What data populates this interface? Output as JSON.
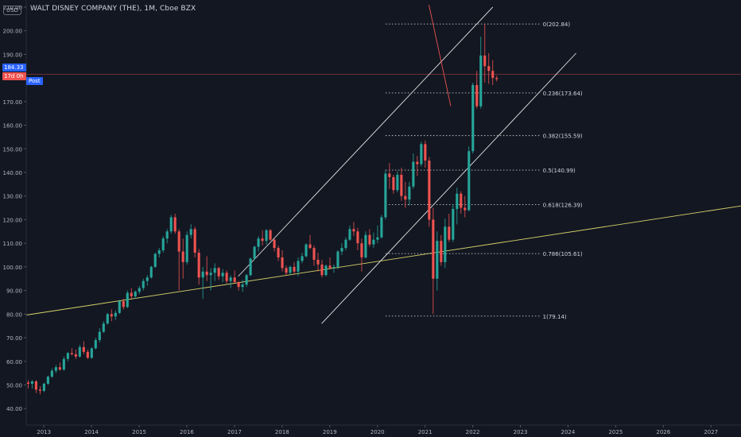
{
  "header": {
    "title": "WALT DISNEY COMPANY (THE), 1M, Cboe BZX",
    "currency": "USD",
    "price_label": "184.33",
    "session_label": "Post",
    "countdown_label": "17d 0h"
  },
  "colors": {
    "background": "#131722",
    "up": "#26a69a",
    "down": "#ef5350",
    "trendline": "#d8d36a",
    "channel": "#e6e6e6",
    "fib": "#c8c8c8",
    "price_line": "#ef5350",
    "post_badge": "#2962ff"
  },
  "chart_data": {
    "type": "candlestick",
    "title": "WALT DISNEY COMPANY (THE), 1M, Cboe BZX",
    "y_ticks": [
      40,
      50,
      60,
      70,
      80,
      90,
      100,
      110,
      120,
      130,
      140,
      150,
      160,
      170,
      180,
      190,
      200,
      210
    ],
    "y_tick_labels": [
      "40.00",
      "50.00",
      "60.00",
      "70.00",
      "80.00",
      "90.00",
      "100.00",
      "110.00",
      "120.00",
      "130.00",
      "140.00",
      "150.00",
      "160.00",
      "170.00",
      "180.00",
      "190.00",
      "200.00",
      "210.00"
    ],
    "x_ticks": [
      2013,
      2014,
      2015,
      2016,
      2017,
      2018,
      2019,
      2020,
      2021,
      2022,
      2023,
      2024,
      2025,
      2026,
      2027
    ],
    "x_tick_labels": [
      "2013",
      "2014",
      "2015",
      "2016",
      "2017",
      "2018",
      "2019",
      "2020",
      "2021",
      "2022",
      "2023",
      "2024",
      "2025",
      "2026",
      "2027"
    ],
    "ylim": [
      33,
      213
    ],
    "xlim": [
      2012.63,
      2027.63
    ],
    "current_price": 184.33,
    "price_line": 181.5,
    "candles": [
      [
        51.0,
        52.0,
        48.5,
        50.5
      ],
      [
        50.5,
        52.0,
        48.5,
        51.5
      ],
      [
        51.5,
        52.0,
        46.5,
        48.0
      ],
      [
        48.0,
        49.5,
        46.0,
        47.5
      ],
      [
        47.5,
        51.0,
        47.0,
        50.5
      ],
      [
        50.5,
        54.0,
        50.0,
        53.5
      ],
      [
        53.5,
        57.0,
        53.0,
        56.0
      ],
      [
        56.0,
        58.5,
        55.0,
        57.5
      ],
      [
        57.5,
        59.5,
        56.0,
        56.5
      ],
      [
        56.5,
        62.0,
        56.0,
        61.0
      ],
      [
        61.0,
        64.0,
        60.0,
        63.5
      ],
      [
        63.5,
        65.5,
        62.5,
        63.0
      ],
      [
        63.0,
        65.0,
        61.0,
        62.0
      ],
      [
        62.0,
        67.0,
        61.5,
        66.0
      ],
      [
        66.0,
        68.5,
        63.0,
        64.0
      ],
      [
        64.0,
        65.0,
        61.0,
        61.5
      ],
      [
        61.5,
        66.0,
        61.0,
        65.5
      ],
      [
        65.5,
        70.0,
        65.0,
        69.0
      ],
      [
        69.0,
        74.0,
        68.0,
        72.5
      ],
      [
        72.5,
        77.0,
        72.0,
        76.0
      ],
      [
        76.0,
        80.5,
        75.5,
        80.0
      ],
      [
        80.0,
        82.0,
        77.0,
        79.0
      ],
      [
        79.0,
        81.5,
        77.5,
        80.5
      ],
      [
        80.5,
        86.0,
        80.0,
        85.5
      ],
      [
        85.5,
        86.5,
        82.0,
        83.0
      ],
      [
        83.0,
        90.0,
        82.5,
        89.0
      ],
      [
        89.0,
        91.0,
        86.5,
        87.5
      ],
      [
        87.5,
        90.0,
        86.5,
        89.5
      ],
      [
        89.5,
        92.0,
        88.5,
        91.0
      ],
      [
        91.0,
        95.0,
        90.0,
        94.0
      ],
      [
        94.0,
        96.5,
        92.0,
        95.5
      ],
      [
        95.5,
        100.5,
        95.0,
        100.0
      ],
      [
        100.0,
        106.0,
        99.5,
        105.5
      ],
      [
        105.5,
        108.0,
        104.0,
        107.0
      ],
      [
        107.0,
        113.0,
        106.0,
        112.0
      ],
      [
        112.0,
        116.0,
        110.0,
        115.0
      ],
      [
        115.0,
        122.0,
        114.0,
        121.0
      ],
      [
        121.0,
        122.5,
        114.0,
        115.0
      ],
      [
        115.0,
        116.0,
        90.0,
        106.5
      ],
      [
        106.5,
        112.0,
        95.0,
        102.0
      ],
      [
        102.0,
        115.0,
        101.0,
        113.5
      ],
      [
        113.5,
        118.0,
        112.0,
        116.0
      ],
      [
        116.0,
        117.0,
        104.0,
        106.0
      ],
      [
        106.0,
        107.5,
        92.5,
        95.5
      ],
      [
        95.5,
        100.0,
        86.5,
        98.0
      ],
      [
        98.0,
        104.5,
        94.0,
        96.5
      ],
      [
        96.5,
        99.5,
        90.0,
        97.5
      ],
      [
        97.5,
        101.5,
        94.0,
        99.5
      ],
      [
        99.5,
        100.0,
        94.5,
        96.0
      ],
      [
        96.0,
        99.0,
        93.5,
        97.5
      ],
      [
        97.5,
        98.5,
        93.0,
        94.0
      ],
      [
        94.0,
        96.5,
        91.0,
        95.5
      ],
      [
        95.5,
        98.5,
        93.5,
        93.5
      ],
      [
        93.5,
        94.0,
        90.0,
        91.5
      ],
      [
        91.5,
        94.5,
        89.5,
        92.5
      ],
      [
        92.5,
        97.0,
        91.5,
        96.5
      ],
      [
        96.5,
        104.0,
        96.0,
        103.5
      ],
      [
        103.5,
        109.0,
        103.0,
        108.5
      ],
      [
        108.5,
        113.0,
        106.5,
        112.0
      ],
      [
        112.0,
        115.5,
        109.0,
        111.0
      ],
      [
        111.0,
        116.0,
        109.5,
        115.5
      ],
      [
        115.5,
        116.0,
        111.0,
        111.5
      ],
      [
        111.5,
        112.0,
        106.5,
        108.0
      ],
      [
        108.0,
        109.0,
        102.5,
        104.0
      ],
      [
        104.0,
        107.0,
        98.0,
        99.5
      ],
      [
        99.5,
        100.5,
        96.5,
        97.5
      ],
      [
        97.5,
        100.5,
        96.5,
        100.0
      ],
      [
        100.0,
        102.0,
        97.0,
        98.0
      ],
      [
        98.0,
        104.0,
        96.0,
        102.5
      ],
      [
        102.5,
        106.0,
        101.5,
        104.5
      ],
      [
        104.5,
        110.0,
        104.0,
        109.5
      ],
      [
        109.5,
        113.5,
        107.5,
        108.0
      ],
      [
        108.0,
        109.0,
        100.5,
        103.0
      ],
      [
        103.0,
        106.0,
        98.0,
        101.0
      ],
      [
        101.0,
        103.0,
        95.5,
        96.5
      ],
      [
        96.5,
        101.0,
        96.0,
        100.5
      ],
      [
        100.5,
        104.0,
        99.0,
        99.5
      ],
      [
        99.5,
        101.0,
        97.5,
        100.0
      ],
      [
        100.0,
        107.0,
        99.0,
        106.5
      ],
      [
        106.5,
        110.0,
        105.0,
        108.0
      ],
      [
        108.0,
        112.5,
        107.0,
        111.5
      ],
      [
        111.5,
        117.5,
        111.0,
        116.0
      ],
      [
        116.0,
        119.0,
        113.0,
        115.0
      ],
      [
        115.0,
        116.5,
        107.0,
        110.0
      ],
      [
        110.0,
        112.0,
        98.0,
        104.0
      ],
      [
        104.0,
        115.0,
        103.5,
        113.5
      ],
      [
        113.5,
        116.0,
        108.5,
        109.5
      ],
      [
        109.5,
        114.5,
        108.0,
        111.5
      ],
      [
        111.5,
        117.5,
        110.0,
        112.5
      ],
      [
        112.5,
        122.0,
        112.0,
        121.0
      ],
      [
        121.0,
        141.0,
        120.0,
        139.5
      ],
      [
        139.5,
        144.0,
        133.0,
        138.0
      ],
      [
        138.0,
        139.0,
        131.0,
        132.5
      ],
      [
        132.5,
        140.5,
        131.5,
        139.0
      ],
      [
        139.0,
        142.0,
        128.0,
        130.0
      ],
      [
        130.0,
        136.0,
        125.0,
        128.5
      ],
      [
        128.5,
        136.0,
        126.0,
        134.0
      ],
      [
        134.0,
        148.0,
        133.0,
        144.5
      ],
      [
        144.5,
        147.0,
        138.5,
        143.5
      ],
      [
        143.5,
        153.0,
        142.5,
        152.0
      ],
      [
        152.0,
        153.5,
        142.0,
        145.0
      ],
      [
        145.0,
        146.5,
        117.0,
        120.0
      ],
      [
        120.0,
        125.0,
        80.0,
        95.0
      ],
      [
        95.0,
        115.0,
        90.0,
        111.0
      ],
      [
        111.0,
        113.5,
        100.5,
        102.0
      ],
      [
        102.0,
        120.5,
        99.5,
        117.0
      ],
      [
        117.0,
        122.5,
        110.5,
        111.5
      ],
      [
        111.5,
        126.5,
        110.5,
        124.5
      ],
      [
        124.5,
        133.5,
        118.0,
        131.0
      ],
      [
        131.0,
        132.0,
        122.5,
        125.0
      ],
      [
        125.0,
        130.0,
        121.0,
        124.0
      ],
      [
        124.0,
        151.0,
        123.5,
        149.0
      ],
      [
        149.0,
        178.0,
        148.0,
        177.0
      ],
      [
        177.0,
        183.0,
        167.0,
        168.0
      ],
      [
        168.0,
        197.5,
        167.0,
        189.5
      ],
      [
        189.5,
        202.8,
        178.0,
        185.0
      ],
      [
        185.0,
        190.5,
        177.5,
        183.0
      ],
      [
        183.0,
        187.5,
        177.0,
        180.0
      ],
      [
        180.0,
        181.0,
        178.5,
        179.5
      ]
    ],
    "fib_levels": [
      {
        "ratio": "0",
        "value": 202.84,
        "label": "0(202.84)"
      },
      {
        "ratio": "0.236",
        "value": 173.64,
        "label": "0.236(173.64)"
      },
      {
        "ratio": "0.382",
        "value": 155.59,
        "label": "0.382(155.59)"
      },
      {
        "ratio": "0.5",
        "value": 140.99,
        "label": "0.5(140.99)"
      },
      {
        "ratio": "0.618",
        "value": 126.39,
        "label": "0.618(126.39)"
      },
      {
        "ratio": "0.786",
        "value": 105.61,
        "label": "0.786(105.61)"
      },
      {
        "ratio": "1",
        "value": 79.14,
        "label": "1(79.14)"
      }
    ],
    "fib_x_range": [
      2020.17,
      2023.42
    ],
    "trendlines": [
      {
        "name": "support",
        "color": "trendline",
        "points": [
          [
            2012.63,
            79.6
          ],
          [
            2027.63,
            125.8
          ]
        ]
      },
      {
        "name": "channel_upper",
        "color": "channel",
        "points": [
          [
            2017.08,
            96.0
          ],
          [
            2022.42,
            210.0
          ]
        ]
      },
      {
        "name": "channel_lower",
        "color": "channel",
        "points": [
          [
            2018.83,
            76.0
          ],
          [
            2024.17,
            190.5
          ]
        ]
      },
      {
        "name": "red_downtrend",
        "color": "price_line",
        "points": [
          [
            2021.08,
            211.0
          ],
          [
            2021.54,
            168.0
          ]
        ]
      }
    ],
    "grid": false,
    "legend": "none"
  }
}
